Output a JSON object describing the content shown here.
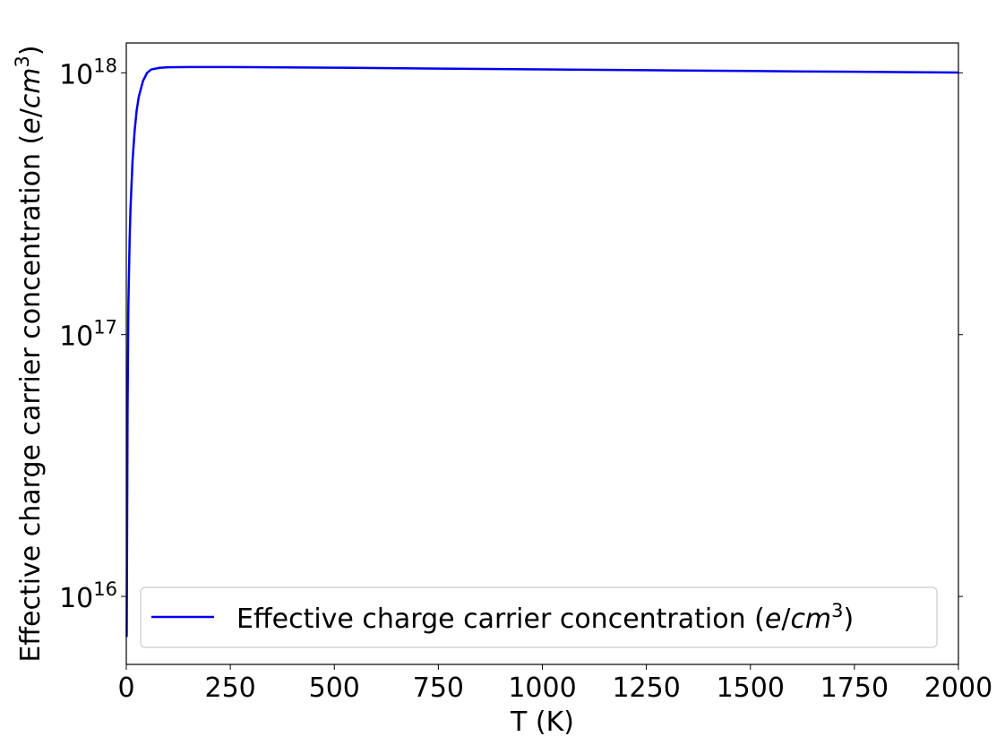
{
  "chart_data": {
    "type": "line",
    "xlabel": "T (K)",
    "ylabel": "Effective charge carrier concentration (e/cm3)",
    "xlim": [
      0,
      2000
    ],
    "ylim": [
      5500000000000000.0,
      1.3e+18
    ],
    "yscale": "log",
    "grid": false,
    "legend_position": "lower-right",
    "x_ticks": [
      "0",
      "250",
      "500",
      "750",
      "1000",
      "1250",
      "1500",
      "1750",
      "2000"
    ],
    "x_tick_values": [
      0,
      250,
      500,
      750,
      1000,
      1250,
      1500,
      1750,
      2000
    ],
    "y_tick_values": [
      1e+16,
      1e+17,
      1e+18
    ],
    "y_ticks": [
      {
        "base": "10",
        "exp": "16"
      },
      {
        "base": "10",
        "exp": "17"
      },
      {
        "base": "10",
        "exp": "18"
      }
    ],
    "series": [
      {
        "name": "Effective charge carrier concentration (e/cm3)",
        "color": "#0000ee",
        "x": [
          1,
          3,
          5,
          8,
          10,
          15,
          20,
          25,
          30,
          40,
          50,
          60,
          80,
          100,
          150,
          200,
          300,
          500,
          750,
          1000,
          1250,
          1500,
          1750,
          2000
        ],
        "y": [
          7000000000000000.0,
          5e+16,
          1.3e+17,
          2.3e+17,
          3e+17,
          4.6e+17,
          6e+17,
          7.2e+17,
          8.1e+17,
          9.3e+17,
          1e+18,
          1.03e+18,
          1.045e+18,
          1.05e+18,
          1.052e+18,
          1.052e+18,
          1.051e+18,
          1.046e+18,
          1.038e+18,
          1.03e+18,
          1.023e+18,
          1.016e+18,
          1.009e+18,
          1.002e+18
        ]
      }
    ]
  }
}
